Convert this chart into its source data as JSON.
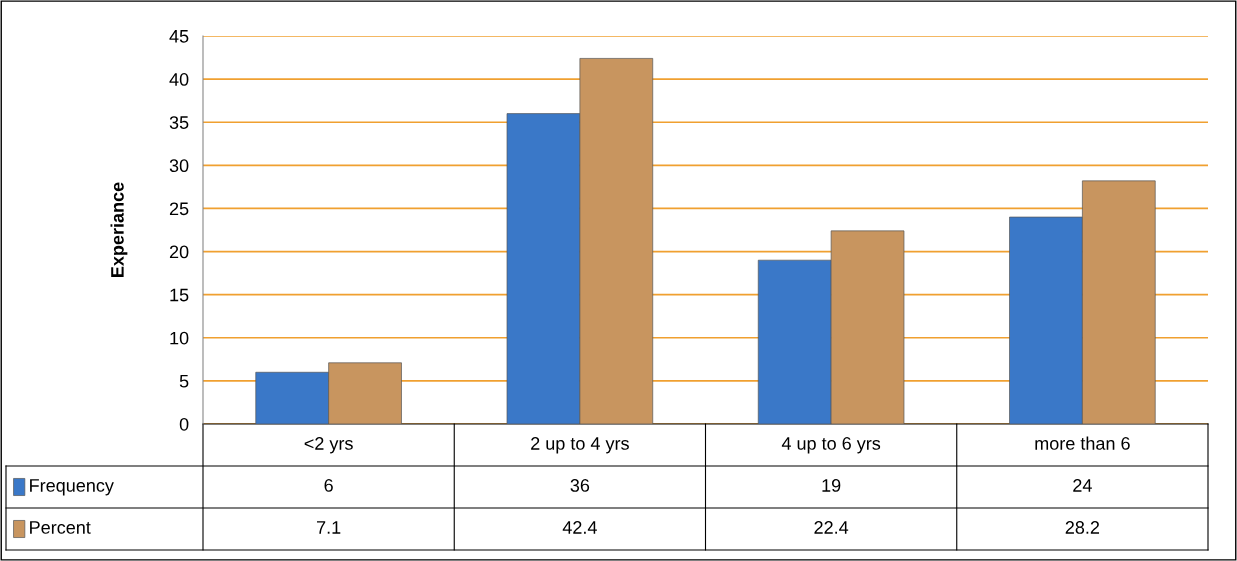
{
  "chart_data": {
    "type": "bar",
    "ylabel": "Experiance",
    "categories": [
      "<2 yrs",
      "2 up to 4 yrs",
      "4 up to 6 yrs",
      "more than 6"
    ],
    "series": [
      {
        "name": "Frequency",
        "color": "#3a78c8",
        "values": [
          6,
          36,
          19,
          24
        ]
      },
      {
        "name": "Percent",
        "color": "#c8955f",
        "values": [
          7.1,
          42.4,
          22.4,
          28.2
        ]
      }
    ],
    "ylim": [
      0,
      45
    ],
    "yticks": [
      0,
      5,
      10,
      15,
      20,
      25,
      30,
      35,
      40,
      45
    ],
    "grid": "y",
    "data_labels": true,
    "legend": "bottom"
  }
}
